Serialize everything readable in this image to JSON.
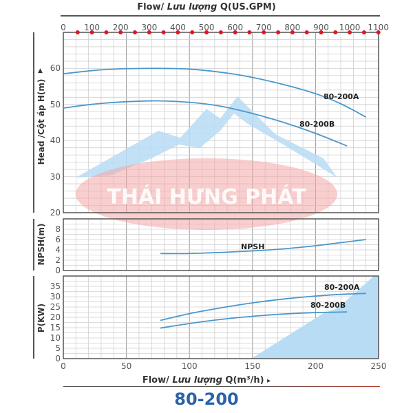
{
  "header": {
    "top_axis_title_prefix": "Flow/ ",
    "top_axis_title_italic": "Lưu lượng",
    "top_axis_title_suffix": " Q(US.GPM)"
  },
  "footer": {
    "bottom_axis_title_prefix": "Flow/ ",
    "bottom_axis_title_italic": "Lưu lượng",
    "bottom_axis_title_suffix": " Q(m³/h)",
    "arrow": "▸",
    "model": "80-200"
  },
  "watermark": {
    "text": "THÁI HƯNG PHÁT",
    "oval_color": "#f4a5a5",
    "mountain_color": "#b9dcf5"
  },
  "colors": {
    "curve": "#4a97cc",
    "grid_minor": "#cfcfcf",
    "grid_major": "#9a9a9a",
    "frame": "#555555",
    "marker": "#e8141c",
    "model_title": "#2a62a8"
  },
  "chart_data": [
    {
      "type": "line",
      "title": "Head / Cột áp H(m)",
      "xlabel": "Flow/ Lưu lượng Q(m³/h)",
      "ylabel": "Head /Cột áp H(m)",
      "xlim": [
        0,
        250
      ],
      "ylim": [
        20,
        70
      ],
      "x_ticks": [
        0,
        50,
        100,
        150,
        200,
        250
      ],
      "y_ticks": [
        20,
        30,
        40,
        50,
        60
      ],
      "secondary_x_axis": {
        "label": "Flow/ Lưu lượng Q(US.GPM)",
        "ticks": [
          0,
          100,
          200,
          300,
          400,
          500,
          600,
          700,
          800,
          900,
          1000,
          1100
        ],
        "marker_ticks": [
          50,
          100,
          150,
          200,
          250,
          300,
          350,
          400,
          450,
          500,
          550,
          600,
          650,
          700,
          750,
          800,
          850,
          900,
          950,
          1000,
          1050,
          1100
        ]
      },
      "grid": true,
      "series": [
        {
          "name": "80-200A",
          "x": [
            0,
            30,
            65,
            100,
            130,
            150,
            175,
            200,
            220,
            240
          ],
          "values": [
            58.5,
            59.6,
            60,
            59.8,
            58.7,
            57.5,
            55.5,
            53,
            50.2,
            46.5
          ]
        },
        {
          "name": "80-200B",
          "x": [
            0,
            30,
            70,
            100,
            125,
            150,
            175,
            200,
            225
          ],
          "values": [
            49,
            50.3,
            51,
            50.6,
            49.5,
            47.5,
            45,
            42,
            38.5
          ]
        }
      ]
    },
    {
      "type": "line",
      "title": "NPSH(m)",
      "ylabel": "NPSH(m)",
      "xlim": [
        0,
        250
      ],
      "ylim": [
        0,
        10
      ],
      "y_ticks": [
        0,
        2,
        4,
        6,
        8
      ],
      "grid": true,
      "series": [
        {
          "name": "NPSH",
          "x": [
            77,
            100,
            125,
            150,
            175,
            200,
            220,
            240
          ],
          "values": [
            3.3,
            3.3,
            3.5,
            3.8,
            4.2,
            4.8,
            5.4,
            6.0
          ]
        }
      ]
    },
    {
      "type": "line",
      "title": "P(KW)",
      "ylabel": "P(KW)",
      "xlabel": "Flow/ Lưu lượng Q(m³/h)",
      "xlim": [
        0,
        250
      ],
      "ylim": [
        0,
        40
      ],
      "y_ticks": [
        0,
        5,
        10,
        15,
        20,
        25,
        30,
        35
      ],
      "x_ticks": [
        0,
        50,
        100,
        150,
        200,
        250
      ],
      "grid": true,
      "series": [
        {
          "name": "80-200A",
          "x": [
            77,
            100,
            125,
            150,
            175,
            200,
            220,
            240
          ],
          "values": [
            18.5,
            21.8,
            24.6,
            27,
            28.9,
            30.3,
            31.1,
            31.6
          ]
        },
        {
          "name": "80-200B",
          "x": [
            77,
            100,
            125,
            150,
            175,
            200,
            225
          ],
          "values": [
            14.8,
            17,
            19,
            20.5,
            21.6,
            22.3,
            22.6
          ]
        }
      ]
    }
  ]
}
